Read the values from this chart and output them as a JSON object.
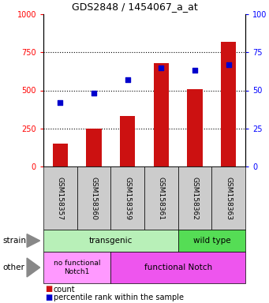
{
  "title": "GDS2848 / 1454067_a_at",
  "categories": [
    "GSM158357",
    "GSM158360",
    "GSM158359",
    "GSM158361",
    "GSM158362",
    "GSM158363"
  ],
  "counts": [
    150,
    250,
    330,
    680,
    510,
    820
  ],
  "percentiles": [
    42,
    48,
    57,
    65,
    63,
    67
  ],
  "ylim_left": [
    0,
    1000
  ],
  "ylim_right": [
    0,
    100
  ],
  "yticks_left": [
    0,
    250,
    500,
    750,
    1000
  ],
  "yticks_right": [
    0,
    25,
    50,
    75,
    100
  ],
  "bar_color": "#cc1111",
  "dot_color": "#0000cc",
  "bar_width": 0.45,
  "tick_bg_color": "#cccccc",
  "transgenic_color": "#b8f0b8",
  "wildtype_color": "#55dd55",
  "nofunc_color": "#ff99ff",
  "func_color": "#ee55ee",
  "legend_count_label": "count",
  "legend_pct_label": "percentile rank within the sample",
  "grid_color": "#000000",
  "grid_linestyle": ":",
  "grid_linewidth": 0.8
}
